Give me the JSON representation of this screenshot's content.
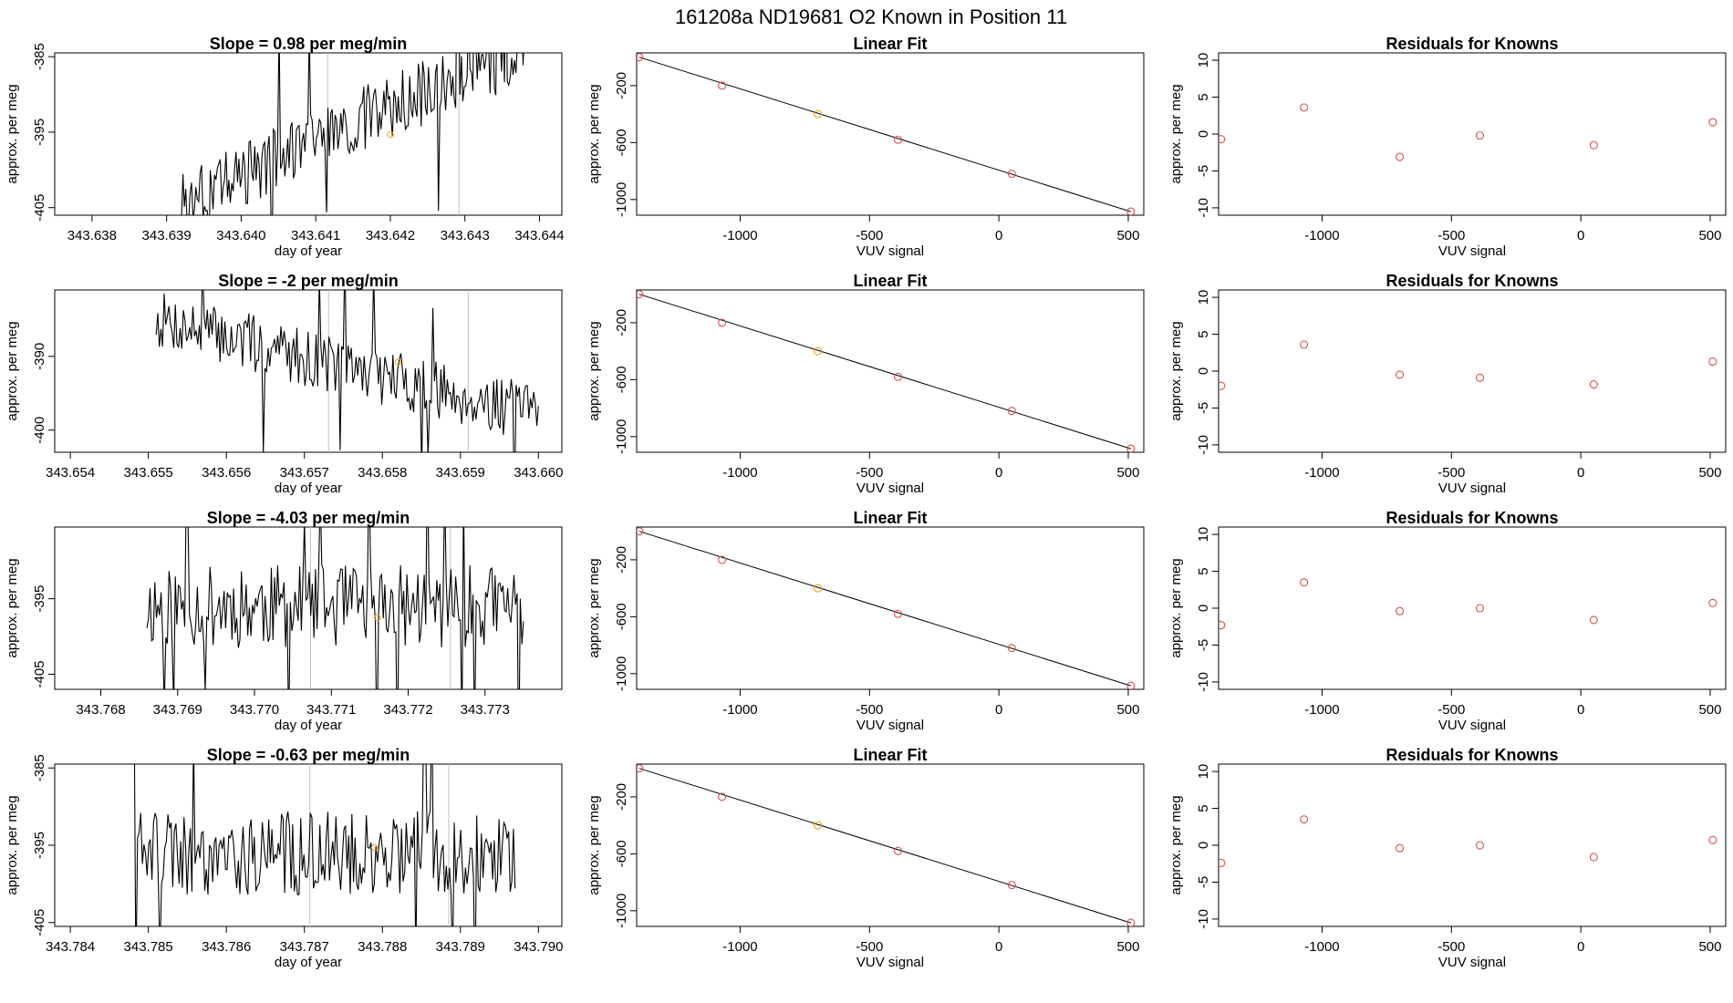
{
  "page_title": "161208a      ND19681    O2 Known in Position  11",
  "colors": {
    "line": "#000000",
    "marker": "#d45050",
    "highlight": "#f0a020",
    "frame": "#000000",
    "vline": "#c0c0c0"
  },
  "chart_data": [
    {
      "type": "line",
      "title": "Slope =  0.98  per meg/min",
      "xlabel": "day of year",
      "ylabel": "approx. per meg",
      "xlim": [
        343.6375,
        343.6443
      ],
      "ylim": [
        -406,
        -384.5
      ],
      "xticks": [
        343.638,
        343.639,
        343.64,
        343.641,
        343.642,
        343.643,
        343.644
      ],
      "xtick_labels": [
        "343.638",
        "343.639",
        "343.640",
        "343.641",
        "343.642",
        "343.643",
        "343.644"
      ],
      "yticks": [
        -385,
        -395,
        -405
      ],
      "ytick_labels": [
        "-385",
        "-395",
        "-405"
      ],
      "x_start": 343.6392,
      "x_end": 343.6438,
      "trend": [
        -404,
        -384
      ],
      "noise": 4.5,
      "seed": 3,
      "vlines": [
        343.64116,
        343.64292
      ],
      "highlight_point": [
        343.642,
        -395.3
      ]
    },
    {
      "type": "scatter",
      "title": "Linear Fit",
      "xlabel": "VUV signal",
      "ylabel": "approx. per meg",
      "xlim": [
        -1400,
        560
      ],
      "ylim": [
        -1110,
        30
      ],
      "xticks": [
        -1000,
        -500,
        0,
        500
      ],
      "xtick_labels": [
        "-1000",
        "-500",
        "0",
        "500"
      ],
      "yticks": [
        -200,
        -600,
        -1000
      ],
      "ytick_labels": [
        "-200",
        "-600",
        "-1000"
      ],
      "x": [
        -1390,
        -1070,
        -700,
        -390,
        50,
        510
      ],
      "y": [
        0,
        -200,
        -400,
        -580,
        -820,
        -1085
      ],
      "highlight_index": 2,
      "fit_line": [
        [
          -1390,
          0
        ],
        [
          510,
          -1085
        ]
      ]
    },
    {
      "type": "scatter",
      "title": "Residuals for Knowns",
      "xlabel": "VUV signal",
      "ylabel": "approx. per meg",
      "xlim": [
        -1400,
        560
      ],
      "ylim": [
        -11,
        11
      ],
      "xticks": [
        -1000,
        -500,
        0,
        500
      ],
      "xtick_labels": [
        "-1000",
        "-500",
        "0",
        "500"
      ],
      "yticks": [
        10,
        5,
        0,
        -5,
        -10
      ],
      "ytick_labels": [
        "10",
        "5",
        "0",
        "-5",
        "-10"
      ],
      "x": [
        -1390,
        -1070,
        -700,
        -390,
        50,
        510
      ],
      "y": [
        -0.7,
        3.6,
        -3.1,
        -0.2,
        -1.5,
        1.6
      ]
    },
    {
      "type": "line",
      "title": "Slope =  -2  per meg/min",
      "xlabel": "day of year",
      "ylabel": "approx. per meg",
      "xlim": [
        343.6538,
        343.6603
      ],
      "ylim": [
        -403,
        -381
      ],
      "xticks": [
        343.654,
        343.655,
        343.656,
        343.657,
        343.658,
        343.659,
        343.66
      ],
      "xtick_labels": [
        "343.654",
        "343.655",
        "343.656",
        "343.657",
        "343.658",
        "343.659",
        "343.660"
      ],
      "yticks": [
        -390,
        -400
      ],
      "ytick_labels": [
        "-390",
        "-400"
      ],
      "x_start": 343.6551,
      "x_end": 343.66,
      "trend": [
        -385,
        -398
      ],
      "noise": 4.0,
      "seed": 7,
      "vlines": [
        343.65731,
        343.6591
      ],
      "highlight_point": [
        343.6582,
        -390.8
      ]
    },
    {
      "type": "scatter",
      "title": "Linear Fit",
      "xlabel": "VUV signal",
      "ylabel": "approx. per meg",
      "xlim": [
        -1400,
        560
      ],
      "ylim": [
        -1110,
        30
      ],
      "xticks": [
        -1000,
        -500,
        0,
        500
      ],
      "xtick_labels": [
        "-1000",
        "-500",
        "0",
        "500"
      ],
      "yticks": [
        -200,
        -600,
        -1000
      ],
      "ytick_labels": [
        "-200",
        "-600",
        "-1000"
      ],
      "x": [
        -1390,
        -1070,
        -700,
        -390,
        50,
        510
      ],
      "y": [
        0,
        -200,
        -400,
        -580,
        -820,
        -1085
      ],
      "highlight_index": 2,
      "fit_line": [
        [
          -1390,
          0
        ],
        [
          510,
          -1085
        ]
      ]
    },
    {
      "type": "scatter",
      "title": "Residuals for Knowns",
      "xlabel": "VUV signal",
      "ylabel": "approx. per meg",
      "xlim": [
        -1400,
        560
      ],
      "ylim": [
        -11,
        11
      ],
      "xticks": [
        -1000,
        -500,
        0,
        500
      ],
      "xtick_labels": [
        "-1000",
        "-500",
        "0",
        "500"
      ],
      "yticks": [
        10,
        5,
        0,
        -5,
        -10
      ],
      "ytick_labels": [
        "10",
        "5",
        "0",
        "-5",
        "-10"
      ],
      "x": [
        -1390,
        -1070,
        -700,
        -390,
        50,
        510
      ],
      "y": [
        -2.0,
        3.6,
        -0.5,
        -0.9,
        -1.8,
        1.3
      ]
    },
    {
      "type": "line",
      "title": "Slope =  -4.03  per meg/min",
      "xlabel": "day of year",
      "ylabel": "approx. per meg",
      "xlim": [
        343.7674,
        343.774
      ],
      "ylim": [
        -407,
        -385.5
      ],
      "xticks": [
        343.768,
        343.769,
        343.77,
        343.771,
        343.772,
        343.773
      ],
      "xtick_labels": [
        "343.768",
        "343.769",
        "343.770",
        "343.771",
        "343.772",
        "343.773"
      ],
      "yticks": [
        -395,
        -405
      ],
      "ytick_labels": [
        "-395",
        "-405"
      ],
      "x_start": 343.7686,
      "x_end": 343.7735,
      "trend": [
        -396,
        -396
      ],
      "noise": 5.5,
      "seed": 11,
      "vlines": [
        343.77073,
        343.77255
      ],
      "highlight_point": [
        343.7716,
        -397.5
      ]
    },
    {
      "type": "scatter",
      "title": "Linear Fit",
      "xlabel": "VUV signal",
      "ylabel": "approx. per meg",
      "xlim": [
        -1400,
        560
      ],
      "ylim": [
        -1110,
        30
      ],
      "xticks": [
        -1000,
        -500,
        0,
        500
      ],
      "xtick_labels": [
        "-1000",
        "-500",
        "0",
        "500"
      ],
      "yticks": [
        -200,
        -600,
        -1000
      ],
      "ytick_labels": [
        "-200",
        "-600",
        "-1000"
      ],
      "x": [
        -1390,
        -1070,
        -700,
        -390,
        50,
        510
      ],
      "y": [
        0,
        -200,
        -400,
        -580,
        -820,
        -1085
      ],
      "highlight_index": 2,
      "fit_line": [
        [
          -1390,
          0
        ],
        [
          510,
          -1085
        ]
      ]
    },
    {
      "type": "scatter",
      "title": "Residuals for Knowns",
      "xlabel": "VUV signal",
      "ylabel": "approx. per meg",
      "xlim": [
        -1400,
        560
      ],
      "ylim": [
        -11,
        11
      ],
      "xticks": [
        -1000,
        -500,
        0,
        500
      ],
      "xtick_labels": [
        "-1000",
        "-500",
        "0",
        "500"
      ],
      "yticks": [
        10,
        5,
        0,
        -5,
        -10
      ],
      "ytick_labels": [
        "10",
        "5",
        "0",
        "-5",
        "-10"
      ],
      "x": [
        -1390,
        -1070,
        -700,
        -390,
        50,
        510
      ],
      "y": [
        -2.3,
        3.5,
        -0.4,
        0.0,
        -1.6,
        0.7
      ]
    },
    {
      "type": "line",
      "title": "Slope =  -0.63  per meg/min",
      "xlabel": "day of year",
      "ylabel": "approx. per meg",
      "xlim": [
        343.7838,
        343.7903
      ],
      "ylim": [
        -405.5,
        -384.5
      ],
      "xticks": [
        343.784,
        343.785,
        343.786,
        343.787,
        343.788,
        343.789,
        343.79
      ],
      "xtick_labels": [
        "343.784",
        "343.785",
        "343.786",
        "343.787",
        "343.788",
        "343.789",
        "343.790"
      ],
      "yticks": [
        -385,
        -395,
        -405
      ],
      "ytick_labels": [
        "-385",
        "-395",
        "-405"
      ],
      "x_start": 343.7848,
      "x_end": 343.7897,
      "trend": [
        -396,
        -396
      ],
      "noise": 5.5,
      "seed": 19,
      "vlines": [
        343.78707,
        343.78885
      ],
      "highlight_point": [
        343.7879,
        -395.3
      ]
    },
    {
      "type": "scatter",
      "title": "Linear Fit",
      "xlabel": "VUV signal",
      "ylabel": "approx. per meg",
      "xlim": [
        -1400,
        560
      ],
      "ylim": [
        -1110,
        30
      ],
      "xticks": [
        -1000,
        -500,
        0,
        500
      ],
      "xtick_labels": [
        "-1000",
        "-500",
        "0",
        "500"
      ],
      "yticks": [
        -200,
        -600,
        -1000
      ],
      "ytick_labels": [
        "-200",
        "-600",
        "-1000"
      ],
      "x": [
        -1390,
        -1070,
        -700,
        -390,
        50,
        510
      ],
      "y": [
        0,
        -200,
        -400,
        -580,
        -820,
        -1085
      ],
      "highlight_index": 2,
      "fit_line": [
        [
          -1390,
          0
        ],
        [
          510,
          -1085
        ]
      ]
    },
    {
      "type": "scatter",
      "title": "Residuals for Knowns",
      "xlabel": "VUV signal",
      "ylabel": "approx. per meg",
      "xlim": [
        -1400,
        560
      ],
      "ylim": [
        -11,
        11
      ],
      "xticks": [
        -1000,
        -500,
        0,
        500
      ],
      "xtick_labels": [
        "-1000",
        "-500",
        "0",
        "500"
      ],
      "yticks": [
        10,
        5,
        0,
        -5,
        -10
      ],
      "ytick_labels": [
        "10",
        "5",
        "0",
        "-5",
        "-10"
      ],
      "x": [
        -1390,
        -1070,
        -700,
        -390,
        50,
        510
      ],
      "y": [
        -2.4,
        3.5,
        -0.4,
        0.0,
        -1.6,
        0.7
      ]
    }
  ]
}
